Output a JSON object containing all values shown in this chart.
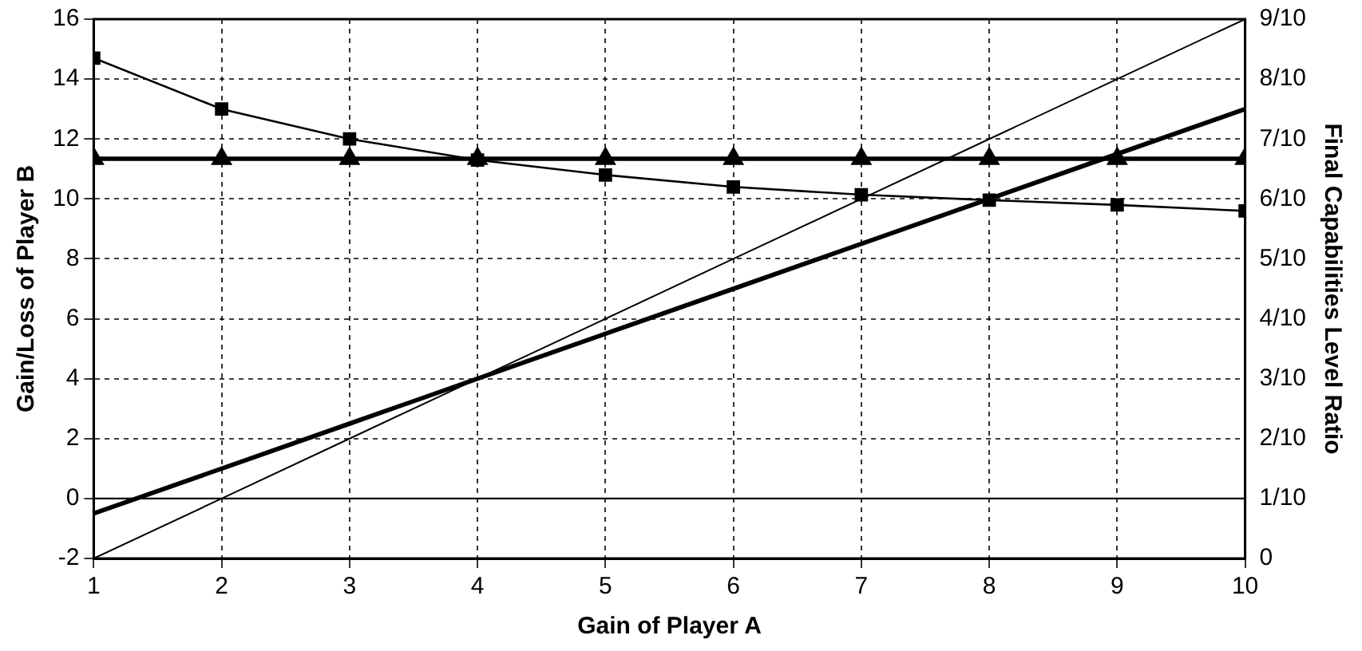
{
  "chart_data": {
    "type": "line",
    "xlabel": "Gain of Player A",
    "ylabel": "Gain/Loss of Player B",
    "y2label": "Final Capabilities Level Ratio",
    "x": [
      1,
      2,
      3,
      4,
      5,
      6,
      7,
      8,
      9,
      10
    ],
    "series": [
      {
        "color": "#000000",
        "marker": "square",
        "axis": "y2",
        "values": [
          0.835,
          0.75,
          0.7,
          0.665,
          0.64,
          0.62,
          0.607,
          0.598,
          0.59,
          0.58
        ]
      },
      {
        "color": "#000000",
        "marker": "triangle",
        "axis": "y2",
        "values": [
          0.667,
          0.667,
          0.667,
          0.667,
          0.667,
          0.667,
          0.667,
          0.667,
          0.667,
          0.667
        ]
      },
      {
        "color": "#000000",
        "marker": "none",
        "values": [
          -2,
          0,
          2,
          4,
          6,
          8,
          10,
          12,
          14,
          16
        ]
      },
      {
        "color": "#000000",
        "marker": "none",
        "values": [
          -0.5,
          1,
          2.5,
          4,
          5.5,
          7,
          8.5,
          10,
          11.5,
          13
        ]
      }
    ],
    "xlim": [
      1,
      10
    ],
    "xticks": [
      1,
      2,
      3,
      4,
      5,
      6,
      7,
      8,
      9,
      10
    ],
    "ylim": [
      -2,
      16
    ],
    "yticks": [
      -2,
      0,
      2,
      4,
      6,
      8,
      10,
      12,
      14,
      16
    ],
    "y2lim": [
      0,
      0.9
    ],
    "y2ticks": [
      0,
      {
        "value": 0.1,
        "label": "1/10"
      },
      {
        "value": 0.2,
        "label": "2/10"
      },
      {
        "value": 0.3,
        "label": "3/10"
      },
      {
        "value": 0.4,
        "label": "4/10"
      },
      {
        "value": 0.5,
        "label": "5/10"
      },
      {
        "value": 0.6,
        "label": "6/10"
      },
      {
        "value": 0.7,
        "label": "7/10"
      },
      {
        "value": 0.8,
        "label": "8/10"
      },
      {
        "value": 0.9,
        "label": "9/10"
      }
    ],
    "ref_lines": [
      {
        "axis": "y",
        "value": 0,
        "color": "#000000",
        "line_style": "solid"
      }
    ],
    "grid": true,
    "legend": false,
    "line_style": "solid"
  }
}
